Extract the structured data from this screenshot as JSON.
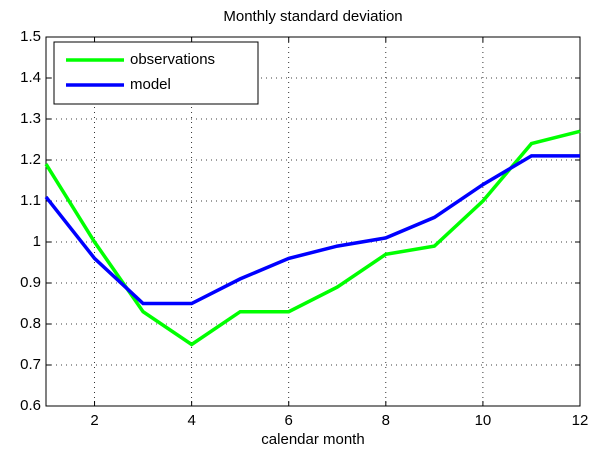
{
  "chart_data": {
    "type": "line",
    "title": "Monthly standard deviation",
    "x_label": "calendar month",
    "x": [
      1,
      2,
      3,
      4,
      5,
      6,
      7,
      8,
      9,
      10,
      11,
      12
    ],
    "series": [
      {
        "name": "observations",
        "color": "#00ff00",
        "values": [
          1.19,
          1.0,
          0.83,
          0.75,
          0.83,
          0.83,
          0.89,
          0.97,
          0.99,
          1.1,
          1.24,
          1.27
        ]
      },
      {
        "name": "model",
        "color": "#0000ff",
        "values": [
          1.11,
          0.96,
          0.85,
          0.85,
          0.91,
          0.96,
          0.99,
          1.01,
          1.06,
          1.14,
          1.21,
          1.21
        ]
      }
    ],
    "xlim": [
      1,
      12
    ],
    "xticks": [
      2,
      4,
      6,
      8,
      10,
      12
    ],
    "ylim": [
      0.6,
      1.5
    ],
    "yticks": [
      0.6,
      0.7,
      0.8,
      0.9,
      1.0,
      1.1,
      1.2,
      1.3,
      1.4,
      1.5
    ],
    "grid": true,
    "legend": "upper-left"
  }
}
